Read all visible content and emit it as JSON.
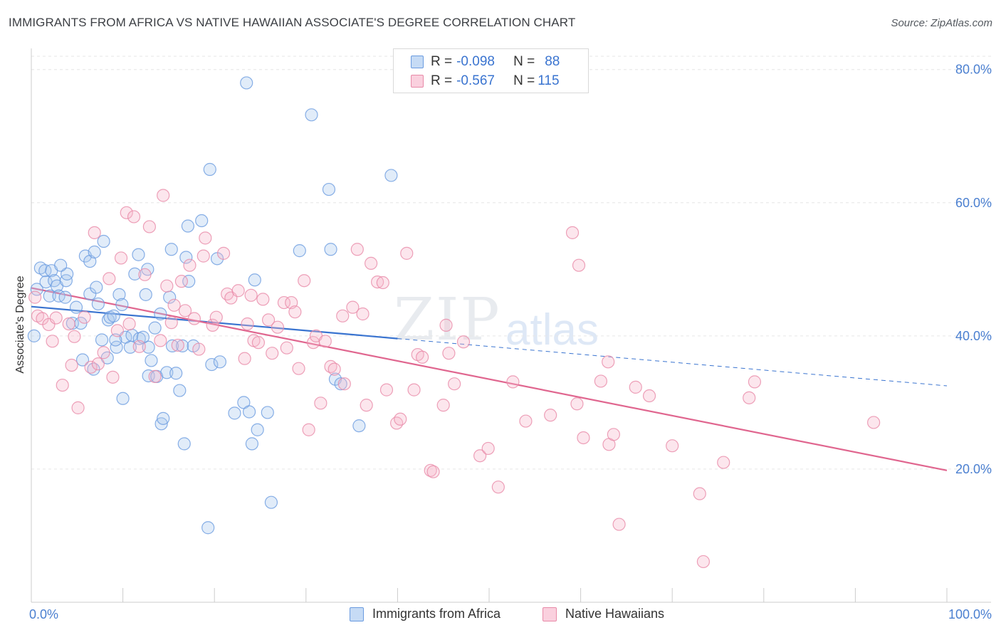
{
  "title": "IMMIGRANTS FROM AFRICA VS NATIVE HAWAIIAN ASSOCIATE'S DEGREE CORRELATION CHART",
  "source": "Source: ZipAtlas.com",
  "watermark": {
    "zip": "ZIP",
    "atlas": "atlas"
  },
  "colors": {
    "blue_fill": "#a9c8ef",
    "blue_stroke": "#6a9be0",
    "blue_line": "#3a74d0",
    "pink_fill": "#f5b6cb",
    "pink_stroke": "#e88aa8",
    "pink_line": "#e0668f",
    "tick_text": "#4a7fd0",
    "grid": "#e6e6e6"
  },
  "legend_top": {
    "rows": [
      {
        "r_label": "R = ",
        "r_value": "-0.098",
        "n_label": "N = ",
        "n_value": "88",
        "series": "blue"
      },
      {
        "r_label": "R = ",
        "r_value": "-0.567",
        "n_label": "N = ",
        "n_value": "115",
        "series": "pink"
      }
    ]
  },
  "legend_bottom": {
    "blue": "Immigrants from Africa",
    "pink": "Native Hawaiians"
  },
  "chart_data": {
    "type": "scatter",
    "title": "IMMIGRANTS FROM AFRICA VS NATIVE HAWAIIAN ASSOCIATE'S DEGREE CORRELATION CHART",
    "xlabel": "",
    "ylabel": "Associate's Degree",
    "xlim": [
      0,
      100
    ],
    "ylim": [
      0,
      82
    ],
    "x_tick_labels": [
      {
        "value": 0,
        "label": "0.0%"
      },
      {
        "value": 100,
        "label": "100.0%"
      }
    ],
    "y_tick_labels": [
      {
        "value": 20,
        "label": "20.0%"
      },
      {
        "value": 40,
        "label": "40.0%"
      },
      {
        "value": 60,
        "label": "60.0%"
      },
      {
        "value": 80,
        "label": "80.0%"
      }
    ],
    "series": [
      {
        "name": "Immigrants from Africa",
        "color": "blue",
        "trend": {
          "x0": 0,
          "y0": 44.4,
          "x1": 40,
          "y1": 39.6,
          "dashed_to_x": 100,
          "dashed_to_y": 32.5
        },
        "points": [
          [
            0.3,
            40.0
          ],
          [
            0.6,
            47.0
          ],
          [
            1.0,
            50.2
          ],
          [
            1.5,
            49.8
          ],
          [
            1.6,
            48.1
          ],
          [
            2.2,
            49.8
          ],
          [
            2.5,
            48.3
          ],
          [
            2.0,
            46.0
          ],
          [
            2.8,
            47.5
          ],
          [
            3.0,
            46.0
          ],
          [
            3.8,
            48.3
          ],
          [
            3.9,
            49.3
          ],
          [
            3.7,
            45.8
          ],
          [
            4.5,
            41.9
          ],
          [
            4.9,
            44.3
          ],
          [
            5.4,
            41.9
          ],
          [
            5.6,
            36.4
          ],
          [
            5.9,
            52.0
          ],
          [
            6.4,
            46.3
          ],
          [
            6.4,
            51.2
          ],
          [
            6.8,
            35.0
          ],
          [
            7.1,
            47.3
          ],
          [
            7.3,
            44.8
          ],
          [
            7.7,
            39.4
          ],
          [
            7.9,
            54.2
          ],
          [
            8.3,
            36.7
          ],
          [
            8.4,
            42.4
          ],
          [
            8.6,
            42.8
          ],
          [
            9.0,
            43.0
          ],
          [
            9.3,
            38.3
          ],
          [
            9.6,
            46.2
          ],
          [
            9.9,
            44.7
          ],
          [
            10.0,
            30.6
          ],
          [
            10.3,
            39.8
          ],
          [
            10.8,
            38.3
          ],
          [
            11.0,
            40.1
          ],
          [
            11.3,
            49.3
          ],
          [
            11.7,
            52.2
          ],
          [
            11.8,
            39.6
          ],
          [
            12.2,
            39.8
          ],
          [
            12.5,
            46.2
          ],
          [
            12.7,
            50.0
          ],
          [
            12.8,
            34.0
          ],
          [
            13.1,
            36.3
          ],
          [
            13.5,
            41.2
          ],
          [
            13.7,
            33.9
          ],
          [
            14.1,
            43.3
          ],
          [
            14.2,
            26.8
          ],
          [
            14.4,
            27.6
          ],
          [
            14.8,
            34.5
          ],
          [
            15.1,
            45.8
          ],
          [
            15.3,
            53.0
          ],
          [
            15.4,
            38.5
          ],
          [
            15.8,
            34.4
          ],
          [
            16.2,
            31.8
          ],
          [
            16.5,
            38.5
          ],
          [
            16.7,
            23.8
          ],
          [
            16.9,
            51.8
          ],
          [
            17.1,
            56.5
          ],
          [
            17.2,
            48.2
          ],
          [
            17.7,
            38.5
          ],
          [
            18.6,
            57.3
          ],
          [
            19.3,
            11.2
          ],
          [
            19.5,
            65.0
          ],
          [
            19.7,
            35.7
          ],
          [
            20.3,
            51.6
          ],
          [
            20.6,
            36.1
          ],
          [
            22.2,
            28.4
          ],
          [
            23.2,
            30.0
          ],
          [
            23.5,
            78.0
          ],
          [
            23.8,
            28.6
          ],
          [
            24.1,
            23.8
          ],
          [
            24.4,
            48.4
          ],
          [
            24.7,
            25.9
          ],
          [
            25.8,
            28.5
          ],
          [
            26.2,
            15.0
          ],
          [
            29.3,
            52.8
          ],
          [
            30.6,
            73.2
          ],
          [
            32.5,
            62.0
          ],
          [
            32.7,
            53.0
          ],
          [
            33.2,
            33.5
          ],
          [
            33.8,
            32.8
          ],
          [
            35.8,
            26.5
          ],
          [
            39.3,
            64.1
          ],
          [
            12.8,
            38.3
          ],
          [
            9.2,
            39.4
          ],
          [
            6.9,
            52.6
          ],
          [
            3.2,
            50.6
          ]
        ]
      },
      {
        "name": "Native Hawaiians",
        "color": "pink",
        "trend": {
          "x0": 0,
          "y0": 47.2,
          "x1": 100,
          "y1": 19.8
        },
        "points": [
          [
            0.4,
            45.8
          ],
          [
            0.7,
            43.0
          ],
          [
            1.2,
            42.6
          ],
          [
            1.9,
            41.7
          ],
          [
            2.3,
            39.2
          ],
          [
            2.7,
            42.7
          ],
          [
            3.4,
            32.6
          ],
          [
            4.1,
            41.8
          ],
          [
            4.4,
            35.6
          ],
          [
            4.7,
            39.9
          ],
          [
            5.1,
            29.2
          ],
          [
            5.8,
            42.8
          ],
          [
            6.5,
            35.3
          ],
          [
            6.9,
            55.5
          ],
          [
            7.3,
            35.8
          ],
          [
            7.9,
            37.5
          ],
          [
            8.5,
            48.6
          ],
          [
            8.9,
            33.8
          ],
          [
            9.4,
            40.8
          ],
          [
            9.8,
            51.7
          ],
          [
            10.4,
            58.5
          ],
          [
            10.7,
            41.8
          ],
          [
            11.2,
            57.9
          ],
          [
            11.8,
            38.4
          ],
          [
            12.4,
            49.2
          ],
          [
            12.9,
            56.4
          ],
          [
            13.5,
            33.9
          ],
          [
            14.1,
            39.3
          ],
          [
            14.4,
            61.1
          ],
          [
            14.8,
            47.5
          ],
          [
            15.3,
            42.0
          ],
          [
            15.6,
            44.6
          ],
          [
            16.0,
            38.6
          ],
          [
            16.4,
            48.2
          ],
          [
            16.8,
            43.8
          ],
          [
            17.3,
            50.6
          ],
          [
            17.8,
            42.6
          ],
          [
            18.3,
            38.0
          ],
          [
            18.8,
            52.0
          ],
          [
            19.0,
            54.7
          ],
          [
            19.8,
            41.6
          ],
          [
            20.2,
            42.8
          ],
          [
            21.0,
            52.4
          ],
          [
            21.4,
            46.3
          ],
          [
            21.8,
            45.7
          ],
          [
            22.6,
            46.8
          ],
          [
            23.3,
            36.6
          ],
          [
            23.6,
            41.8
          ],
          [
            24.0,
            46.1
          ],
          [
            24.3,
            39.3
          ],
          [
            24.8,
            39.0
          ],
          [
            25.3,
            45.5
          ],
          [
            25.9,
            42.4
          ],
          [
            26.3,
            37.4
          ],
          [
            26.9,
            41.3
          ],
          [
            27.6,
            45.0
          ],
          [
            27.9,
            38.2
          ],
          [
            28.4,
            45.0
          ],
          [
            28.8,
            43.6
          ],
          [
            29.2,
            35.1
          ],
          [
            29.8,
            48.3
          ],
          [
            30.3,
            25.9
          ],
          [
            30.8,
            39.0
          ],
          [
            31.1,
            40.0
          ],
          [
            31.6,
            29.9
          ],
          [
            32.1,
            39.2
          ],
          [
            32.7,
            35.4
          ],
          [
            33.1,
            35.0
          ],
          [
            34.0,
            43.0
          ],
          [
            34.2,
            32.8
          ],
          [
            35.1,
            44.3
          ],
          [
            35.6,
            53.0
          ],
          [
            36.2,
            43.3
          ],
          [
            36.6,
            29.6
          ],
          [
            37.1,
            50.9
          ],
          [
            37.8,
            48.1
          ],
          [
            38.4,
            48.0
          ],
          [
            38.8,
            31.9
          ],
          [
            39.9,
            26.9
          ],
          [
            40.3,
            27.5
          ],
          [
            41.0,
            52.4
          ],
          [
            41.8,
            31.9
          ],
          [
            42.2,
            37.2
          ],
          [
            42.7,
            36.8
          ],
          [
            43.6,
            19.8
          ],
          [
            43.9,
            19.6
          ],
          [
            45.0,
            29.6
          ],
          [
            45.3,
            41.6
          ],
          [
            45.6,
            37.4
          ],
          [
            46.2,
            32.8
          ],
          [
            47.2,
            39.1
          ],
          [
            49.0,
            22.0
          ],
          [
            49.9,
            23.1
          ],
          [
            51.0,
            17.3
          ],
          [
            52.6,
            33.1
          ],
          [
            54.0,
            27.2
          ],
          [
            56.7,
            28.1
          ],
          [
            59.1,
            55.5
          ],
          [
            59.6,
            29.8
          ],
          [
            59.8,
            50.6
          ],
          [
            60.3,
            24.7
          ],
          [
            62.2,
            33.2
          ],
          [
            63.0,
            36.1
          ],
          [
            63.1,
            23.7
          ],
          [
            63.6,
            25.2
          ],
          [
            64.2,
            11.7
          ],
          [
            66.0,
            32.3
          ],
          [
            67.5,
            31.0
          ],
          [
            70.0,
            23.5
          ],
          [
            73.0,
            16.3
          ],
          [
            73.4,
            6.1
          ],
          [
            75.6,
            21.0
          ],
          [
            78.4,
            30.7
          ],
          [
            79.0,
            33.1
          ],
          [
            92.0,
            27.0
          ]
        ]
      }
    ]
  }
}
